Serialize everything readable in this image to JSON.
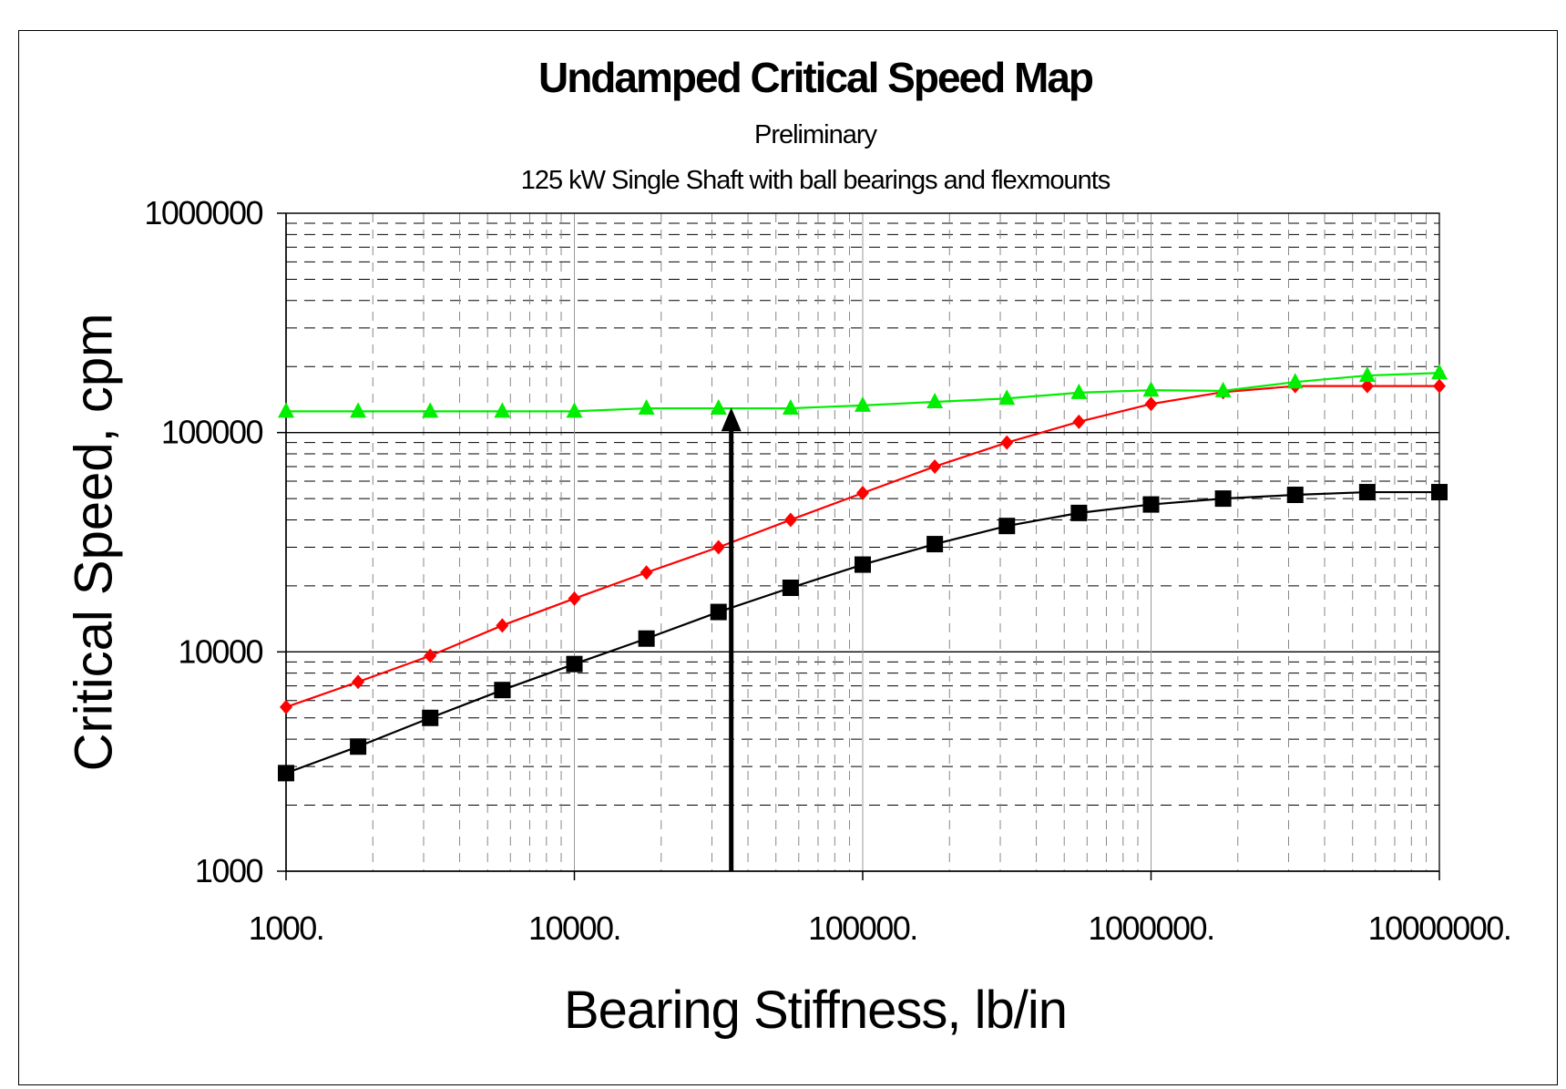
{
  "chart_data": {
    "type": "line",
    "title": "Undamped Critical Speed Map",
    "subtitle": [
      "Preliminary",
      "125 kW Single Shaft with ball bearings and flexmounts"
    ],
    "xlabel": "Bearing Stiffness, lb/in",
    "ylabel": "Critical Speed, cpm",
    "x_scale": "log",
    "y_scale": "log",
    "xlim": [
      1000,
      10000000
    ],
    "ylim": [
      1000,
      1000000
    ],
    "x_ticks": [
      1000,
      10000,
      100000,
      1000000,
      10000000
    ],
    "x_tick_labels": [
      "1000.",
      "10000.",
      "100000.",
      "1000000.",
      "10000000."
    ],
    "y_ticks": [
      1000,
      10000,
      100000,
      1000000
    ],
    "y_tick_labels": [
      "1000",
      "10000",
      "100000",
      "1000000"
    ],
    "grid": true,
    "x": [
      1000,
      1778,
      3162,
      5623,
      10000,
      17783,
      31623,
      56234,
      100000,
      177828,
      316228,
      562341,
      1000000,
      1778279,
      3162278,
      5623413,
      10000000
    ],
    "series": [
      {
        "color": "#000000",
        "marker": "square",
        "values": [
          2800,
          3700,
          5000,
          6700,
          8800,
          11500,
          15200,
          19600,
          25000,
          31000,
          37500,
          43000,
          47000,
          50000,
          52000,
          53500,
          53500
        ]
      },
      {
        "color": "#ff0000",
        "marker": "diamond",
        "values": [
          5600,
          7300,
          9600,
          13200,
          17500,
          23000,
          30000,
          40000,
          53000,
          70000,
          90000,
          112000,
          135000,
          153000,
          163000,
          163000,
          163000
        ]
      },
      {
        "color": "#00ee00",
        "marker": "triangle",
        "values": [
          125000,
          125000,
          125000,
          125000,
          125000,
          129000,
          129000,
          129000,
          133000,
          138000,
          143000,
          152000,
          156000,
          155000,
          170000,
          182000,
          187000
        ]
      }
    ],
    "annotations": [
      {
        "type": "arrow",
        "x": 35000,
        "y_from": 1000,
        "y_to": 130000,
        "color": "#000000"
      }
    ]
  }
}
